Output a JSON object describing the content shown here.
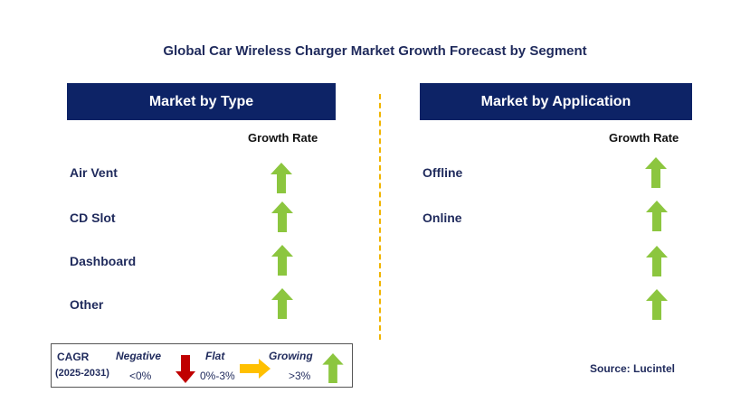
{
  "title": "Global Car Wireless Charger Market Growth Forecast by Segment",
  "left_panel": {
    "header": "Market by Type",
    "column_label": "Growth Rate",
    "rows": [
      {
        "label": "Air Vent",
        "trend": "growing"
      },
      {
        "label": "CD Slot",
        "trend": "growing"
      },
      {
        "label": "Dashboard",
        "trend": "growing"
      },
      {
        "label": "Other",
        "trend": "growing"
      }
    ]
  },
  "right_panel": {
    "header": "Market by Application",
    "column_label": "Growth Rate",
    "rows": [
      {
        "label": "Offline",
        "trend": "growing"
      },
      {
        "label": "Online",
        "trend": "growing"
      },
      {
        "label": "",
        "trend": "growing"
      },
      {
        "label": "",
        "trend": "growing"
      }
    ]
  },
  "legend": {
    "cagr_label": "CAGR",
    "period": "(2025-2031)",
    "negative_label": "Negative",
    "negative_range": "<0%",
    "flat_label": "Flat",
    "flat_range": "0%-3%",
    "growing_label": "Growing",
    "growing_range": ">3%"
  },
  "source": "Source: Lucintel",
  "colors": {
    "header_bg": "#0d2366",
    "growing": "#8cc63f",
    "negative": "#c00000",
    "flat": "#ffc000",
    "divider": "#f0b400"
  }
}
